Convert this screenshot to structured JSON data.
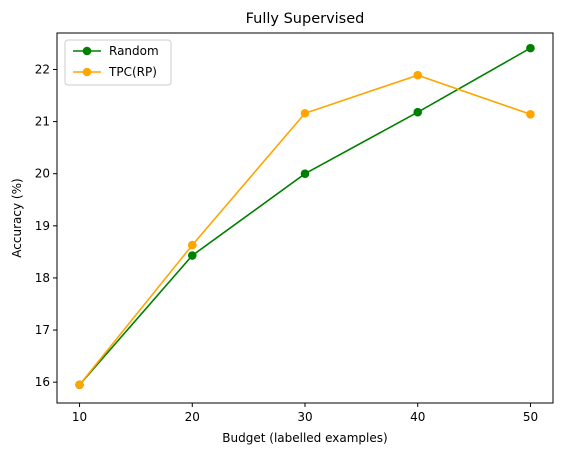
{
  "chart_data": {
    "type": "line",
    "title": "Fully Supervised",
    "xlabel": "Budget (labelled examples)",
    "ylabel": "Accuracy (%)",
    "x": [
      10,
      20,
      30,
      40,
      50
    ],
    "xticks": [
      "10",
      "20",
      "30",
      "40",
      "50"
    ],
    "yticks": [
      "16",
      "17",
      "18",
      "19",
      "20",
      "21",
      "22"
    ],
    "xlim": [
      8,
      52
    ],
    "ylim": [
      15.6,
      22.7
    ],
    "grid": false,
    "legend_position": "top-left",
    "series": [
      {
        "name": "Random",
        "color": "#008000",
        "marker": "circle",
        "values": [
          15.95,
          18.43,
          20.0,
          21.18,
          22.41
        ]
      },
      {
        "name": "TPC(RP)",
        "color": "#FFA500",
        "marker": "circle",
        "values": [
          15.95,
          18.63,
          21.16,
          21.89,
          21.14
        ]
      }
    ]
  }
}
